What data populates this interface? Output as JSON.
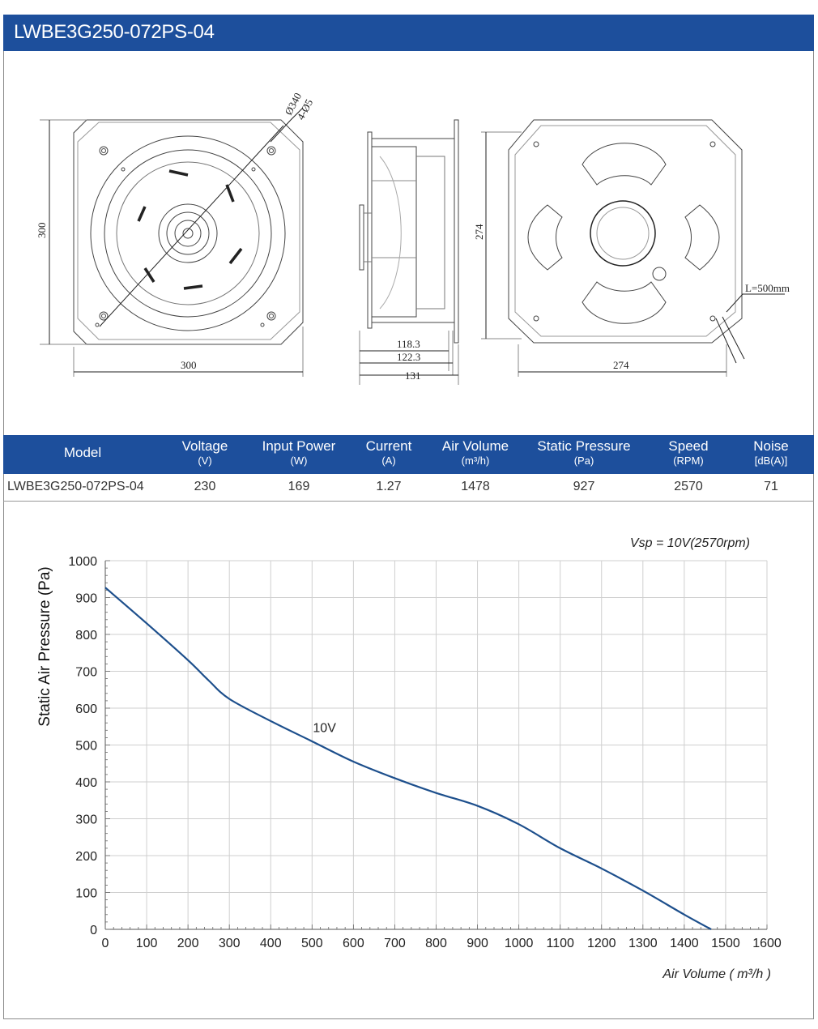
{
  "title": "LWBE3G250-072PS-04",
  "drawing": {
    "front_width": "300",
    "front_height": "300",
    "hole_diameter": "Ø340",
    "mount_holes": "4-Ø5",
    "side_dim_1": "118.3",
    "side_dim_2": "122.3",
    "side_dim_3": "131",
    "rear_width": "274",
    "rear_height": "274",
    "cable_length": "L=500mm"
  },
  "spec_table": {
    "headers": [
      {
        "label": "Model",
        "unit": ""
      },
      {
        "label": "Voltage",
        "unit": "(V)"
      },
      {
        "label": "Input Power",
        "unit": "(W)"
      },
      {
        "label": "Current",
        "unit": "(A)"
      },
      {
        "label": "Air Volume",
        "unit": "(m³/h)"
      },
      {
        "label": "Static Pressure",
        "unit": "(Pa)"
      },
      {
        "label": "Speed",
        "unit": "(RPM)"
      },
      {
        "label": "Noise",
        "unit": "[dB(A)]"
      }
    ],
    "row": [
      "LWBE3G250-072PS-04",
      "230",
      "169",
      "1.27",
      "1478",
      "927",
      "2570",
      "71"
    ]
  },
  "chart_data": {
    "type": "line",
    "annotation": "Vsp = 10V(2570rpm)",
    "ylabel": "Static Air Pressure  (Pa)",
    "xlabel": "Air Volume ( m³/h )",
    "xlim": [
      0,
      1600
    ],
    "ylim": [
      0,
      1000
    ],
    "x_ticks": [
      0,
      100,
      200,
      300,
      400,
      500,
      600,
      700,
      800,
      900,
      1000,
      1100,
      1200,
      1300,
      1400,
      1500,
      1600
    ],
    "y_ticks": [
      0,
      100,
      200,
      300,
      400,
      500,
      600,
      700,
      800,
      900,
      1000
    ],
    "grid": true,
    "line_color": "#1d4f8c",
    "series": [
      {
        "name": "10V",
        "x": [
          0,
          100,
          200,
          250,
          300,
          400,
          500,
          600,
          700,
          800,
          900,
          1000,
          1100,
          1200,
          1300,
          1400,
          1465
        ],
        "y": [
          927,
          830,
          730,
          675,
          625,
          565,
          510,
          455,
          410,
          370,
          335,
          285,
          220,
          165,
          105,
          40,
          0
        ]
      }
    ]
  }
}
